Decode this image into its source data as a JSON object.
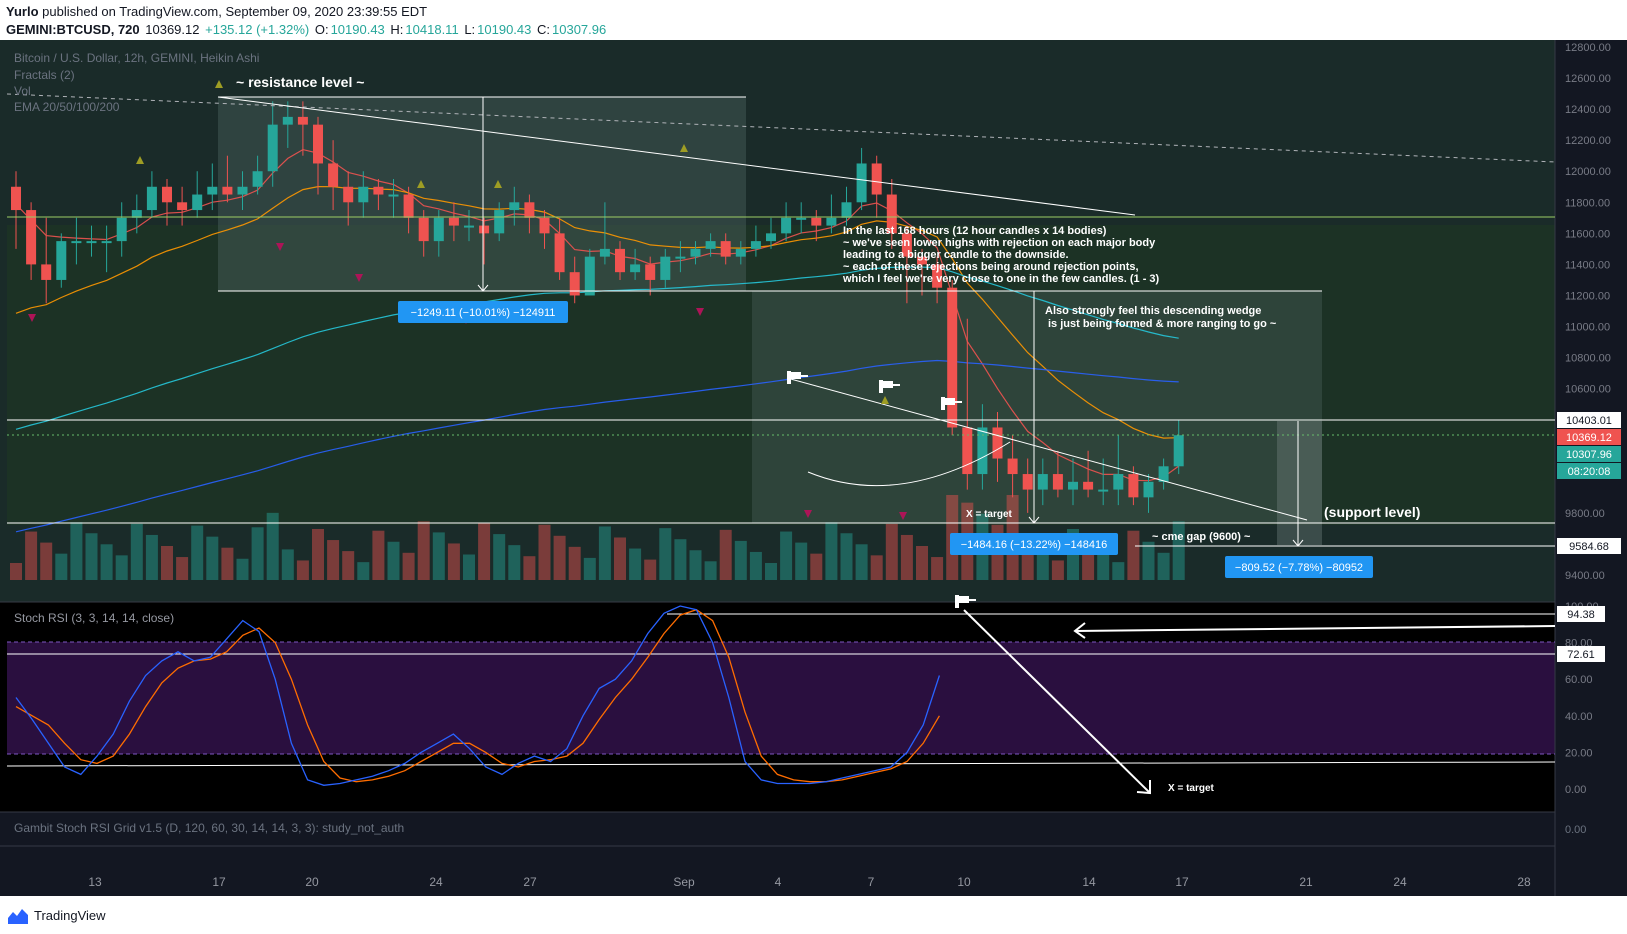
{
  "header": {
    "author": "Yurlo",
    "published": "published on TradingView.com, September 09, 2020 23:39:55 EDT",
    "symbol": "GEMINI:BTCUSD, 720",
    "last": "10369.12",
    "change": "+135.12 (+1.32%)",
    "o_label": "O:",
    "o_value": "10190.43",
    "h_label": "H:",
    "h_value": "10418.11",
    "l_label": "L:",
    "l_value": "10190.43",
    "c_label": "C:",
    "c_value": "10307.96"
  },
  "legend": {
    "title": "Bitcoin / U.S. Dollar, 12h, GEMINI, Heikin Ashi",
    "fractals": "Fractals (2)",
    "vol": "Vol",
    "ema": "EMA 20/50/100/200"
  },
  "annotations": {
    "resistance": "~ resistance level ~",
    "analysis": [
      "In the last 168 hours (12 hour candles x 14 bodies)",
      "~ we've seen lower highs with rejection on each major body",
      "leading to a bigger candle to the downside.",
      "~ each of these rejections being around rejection points,",
      "which I feel we're very close to one in the few candles. (1 - 3)"
    ],
    "wedge": [
      "Also strongly feel this descending wedge",
      "is just being formed & more ranging to go ~"
    ],
    "target1": "X = target",
    "target2": "X = target",
    "support": "(support level)",
    "cme": "~ cme gap (9600) ~",
    "box1": "−1249.11 (−10.01%) −124911",
    "box2": "−1484.16 (−13.22%) −148416",
    "box3": "−809.52 (−7.78%) −80952"
  },
  "price_axis": {
    "ticks": [
      "12800.00",
      "12600.00",
      "12400.00",
      "12200.00",
      "12000.00",
      "11800.00",
      "11600.00",
      "11400.00",
      "11200.00",
      "11000.00",
      "10800.00",
      "10600.00",
      "9800.00",
      "9400.00"
    ],
    "tick_values": [
      12800,
      12600,
      12400,
      12200,
      12000,
      11800,
      11600,
      11400,
      11200,
      11000,
      10800,
      10600,
      9800,
      9400
    ],
    "label_level": "10403.01",
    "label_last": "10369.12",
    "label_close": "10307.96",
    "label_timer": "08:20:08",
    "label_cme": "9584.68"
  },
  "rsi": {
    "title": "Stoch RSI (3, 3, 14, 14, close)",
    "ticks": [
      "100.00",
      "80.00",
      "60.00",
      "40.00",
      "20.00",
      "0.00"
    ],
    "tick_values": [
      100,
      80,
      60,
      40,
      20,
      0
    ],
    "label_a": "94.38",
    "label_b": "72.61"
  },
  "gambit": {
    "title": "Gambit Stoch RSI Grid v1.5 (D, 120, 60, 30, 14, 14, 3, 3): study_not_auth",
    "tick": "0.00"
  },
  "time_axis": {
    "labels": [
      "13",
      "17",
      "20",
      "24",
      "27",
      "Sep",
      "4",
      "7",
      "10",
      "14",
      "17",
      "21",
      "24",
      "28"
    ]
  },
  "colors": {
    "up": "#26a69a",
    "down": "#ef5350",
    "rsi_k": "#2962ff",
    "rsi_d": "#ff6d00",
    "accent_box": "#2196f3"
  },
  "footer": {
    "brand": "TradingView"
  },
  "chart_data": {
    "type": "candlestick",
    "title": "Bitcoin / U.S. Dollar, 12h, GEMINI, Heikin Ashi",
    "ylim": [
      9400,
      12850
    ],
    "candles": [
      [
        11900,
        11750,
        12000,
        11500
      ],
      [
        11750,
        11400,
        11800,
        11300
      ],
      [
        11400,
        11300,
        11700,
        11150
      ],
      [
        11300,
        11550,
        11600,
        11250
      ],
      [
        11550,
        11550,
        11700,
        11400
      ],
      [
        11550,
        11550,
        11650,
        11450
      ],
      [
        11550,
        11550,
        11650,
        11350
      ],
      [
        11550,
        11700,
        11800,
        11450
      ],
      [
        11700,
        11750,
        11850,
        11600
      ],
      [
        11750,
        11900,
        12000,
        11700
      ],
      [
        11900,
        11800,
        11950,
        11650
      ],
      [
        11800,
        11750,
        11900,
        11650
      ],
      [
        11750,
        11850,
        12000,
        11700
      ],
      [
        11850,
        11900,
        12050,
        11750
      ],
      [
        11900,
        11850,
        12100,
        11800
      ],
      [
        11850,
        11900,
        12000,
        11750
      ],
      [
        11900,
        12000,
        12100,
        11850
      ],
      [
        12000,
        12300,
        12450,
        11900
      ],
      [
        12300,
        12350,
        12450,
        12150
      ],
      [
        12350,
        12300,
        12450,
        12100
      ],
      [
        12300,
        12050,
        12350,
        11850
      ],
      [
        12050,
        11900,
        12200,
        11750
      ],
      [
        11900,
        11800,
        12000,
        11650
      ],
      [
        11800,
        11900,
        12000,
        11700
      ],
      [
        11900,
        11850,
        11950,
        11750
      ],
      [
        11850,
        11850,
        11950,
        11700
      ],
      [
        11850,
        11700,
        11900,
        11600
      ],
      [
        11700,
        11550,
        11750,
        11450
      ],
      [
        11550,
        11700,
        11750,
        11450
      ],
      [
        11700,
        11650,
        11800,
        11550
      ],
      [
        11650,
        11650,
        11750,
        11550
      ],
      [
        11650,
        11600,
        11700,
        11400
      ],
      [
        11600,
        11750,
        11800,
        11550
      ],
      [
        11750,
        11800,
        11900,
        11650
      ],
      [
        11800,
        11700,
        11850,
        11600
      ],
      [
        11700,
        11600,
        11750,
        11500
      ],
      [
        11600,
        11350,
        11700,
        11300
      ],
      [
        11350,
        11200,
        11450,
        11150
      ],
      [
        11200,
        11450,
        11500,
        11350
      ],
      [
        11450,
        11500,
        11800,
        11400
      ],
      [
        11500,
        11350,
        11550,
        11300
      ],
      [
        11350,
        11400,
        11500,
        11300
      ],
      [
        11400,
        11300,
        11450,
        11200
      ],
      [
        11300,
        11450,
        11500,
        11250
      ],
      [
        11450,
        11450,
        11550,
        11350
      ],
      [
        11450,
        11500,
        11550,
        11400
      ],
      [
        11500,
        11550,
        11600,
        11450
      ],
      [
        11550,
        11450,
        11600,
        11400
      ],
      [
        11450,
        11500,
        11550,
        11400
      ],
      [
        11500,
        11550,
        11650,
        11450
      ],
      [
        11550,
        11600,
        11700,
        11500
      ],
      [
        11600,
        11700,
        11800,
        11550
      ],
      [
        11700,
        11700,
        11800,
        11600
      ],
      [
        11700,
        11650,
        11750,
        11550
      ],
      [
        11650,
        11700,
        11850,
        11600
      ],
      [
        11700,
        11800,
        11900,
        11650
      ],
      [
        11800,
        12050,
        12150,
        11750
      ],
      [
        12050,
        11850,
        12100,
        11700
      ],
      [
        11850,
        11600,
        11950,
        11500
      ],
      [
        11600,
        11450,
        11650,
        11150
      ],
      [
        11450,
        11400,
        11500,
        11200
      ],
      [
        11400,
        11250,
        11450,
        11150
      ],
      [
        11250,
        10350,
        11300,
        10300
      ],
      [
        10350,
        10050,
        11050,
        9950
      ],
      [
        10050,
        10350,
        10500,
        9950
      ],
      [
        10350,
        10150,
        10450,
        10000
      ],
      [
        10150,
        10050,
        10300,
        9900
      ],
      [
        10050,
        9950,
        10150,
        9800
      ],
      [
        9950,
        10050,
        10150,
        9850
      ],
      [
        10050,
        9950,
        10200,
        9900
      ],
      [
        9950,
        10000,
        10150,
        9850
      ],
      [
        10000,
        9950,
        10200,
        9900
      ],
      [
        9950,
        9950,
        10150,
        9850
      ],
      [
        9950,
        10050,
        10300,
        9850
      ],
      [
        10050,
        9900,
        10100,
        9850
      ],
      [
        9900,
        10000,
        10050,
        9800
      ],
      [
        10000,
        10100,
        10150,
        9950
      ],
      [
        10100,
        10300,
        10400,
        10050
      ]
    ],
    "volume_scale": [
      0,
      100
    ],
    "rsi_k": [
      50,
      38,
      25,
      12,
      8,
      18,
      30,
      48,
      62,
      70,
      75,
      70,
      72,
      82,
      92,
      86,
      60,
      25,
      5,
      2,
      3,
      5,
      7,
      10,
      14,
      20,
      25,
      30,
      22,
      12,
      8,
      14,
      18,
      15,
      22,
      40,
      55,
      60,
      70,
      85,
      96,
      100,
      98,
      80,
      50,
      15,
      5,
      3,
      3,
      3,
      4,
      6,
      8,
      10,
      12,
      20,
      35,
      62
    ],
    "rsi_d": [
      45,
      40,
      35,
      25,
      16,
      14,
      18,
      30,
      45,
      58,
      66,
      70,
      71,
      75,
      84,
      88,
      80,
      60,
      35,
      15,
      6,
      4,
      5,
      7,
      10,
      15,
      20,
      25,
      25,
      20,
      14,
      12,
      15,
      16,
      18,
      25,
      38,
      50,
      60,
      72,
      85,
      95,
      98,
      92,
      72,
      42,
      18,
      8,
      5,
      4,
      4,
      5,
      7,
      9,
      11,
      15,
      25,
      40
    ],
    "emas": [
      {
        "name": "EMA 20",
        "color": "#ef5350"
      },
      {
        "name": "EMA 50",
        "color": "#ff9800"
      },
      {
        "name": "EMA 100",
        "color": "#26c6da"
      },
      {
        "name": "EMA 200",
        "color": "#2962ff"
      }
    ],
    "x_labels": [
      "13",
      "17",
      "20",
      "24",
      "27",
      "Sep",
      "4",
      "7",
      "10",
      "14",
      "17",
      "21",
      "24",
      "28"
    ]
  }
}
